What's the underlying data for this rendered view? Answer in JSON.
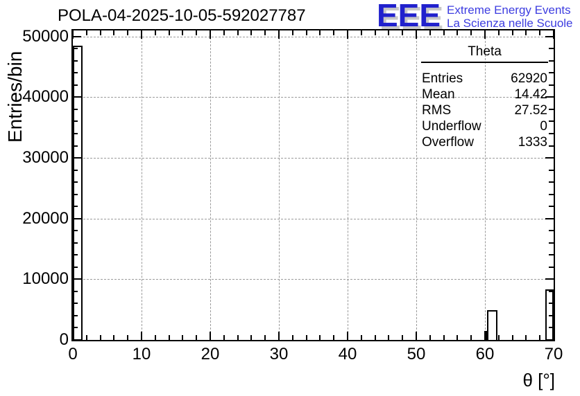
{
  "header": {
    "title": "POLA-04-2025-10-05-592027787",
    "logo": {
      "acronym": "EEE",
      "line1": "Extreme Energy Events",
      "line2": "La Scienza nelle Scuole"
    }
  },
  "colors": {
    "logo_acronym": "#2121cd",
    "logo_tagline": "#3d3de0",
    "logo_shadow": "#c8c8c8",
    "grid": "#9a9a9a",
    "axis": "#000000",
    "bar_fill": "#ffffff",
    "background": "#ffffff"
  },
  "chart_data": {
    "type": "bar",
    "title": "POLA-04-2025-10-05-592027787",
    "xlabel": "θ [°]",
    "ylabel": "Entries/bin",
    "xlim": [
      0,
      70
    ],
    "ylim": [
      0,
      51000
    ],
    "x_major_ticks": [
      0,
      10,
      20,
      30,
      40,
      50,
      60,
      70
    ],
    "x_minor_step": 2,
    "y_major_ticks": [
      0,
      10000,
      20000,
      30000,
      40000,
      50000
    ],
    "y_minor_step": 2000,
    "grid": true,
    "legend_position": "none",
    "bins": [
      {
        "x_start": 0.0,
        "x_end": 1.46,
        "value": 48500
      },
      {
        "x_start": 59.9,
        "x_end": 60.3,
        "value": 1450
      },
      {
        "x_start": 60.3,
        "x_end": 61.8,
        "value": 4900
      },
      {
        "x_start": 68.8,
        "x_end": 70.0,
        "value": 8300
      }
    ],
    "stats": {
      "title": "Theta",
      "rows": [
        {
          "label": "Entries",
          "value": "62920"
        },
        {
          "label": "Mean",
          "value": "14.42"
        },
        {
          "label": "RMS",
          "value": "27.52"
        },
        {
          "label": "Underflow",
          "value": "0"
        },
        {
          "label": "Overflow",
          "value": "1333"
        }
      ]
    }
  }
}
